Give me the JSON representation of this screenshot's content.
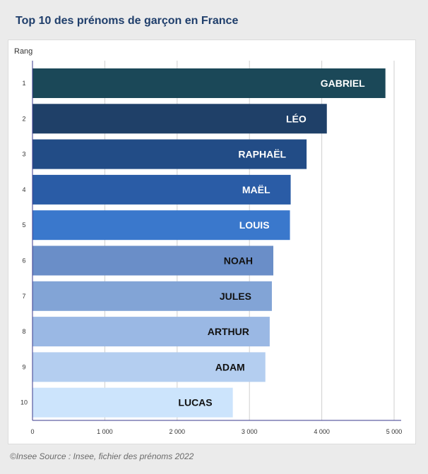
{
  "title": "Top 10 des prénoms de garçon en France",
  "caption": "©Insee Source : Insee, fichier des prénoms 2022",
  "chart_data": {
    "type": "bar",
    "orientation": "horizontal",
    "title": "Top 10 des prénoms de garçon en France",
    "ylabel": "Rang",
    "xlabel": "",
    "categories": [
      "1",
      "2",
      "3",
      "4",
      "5",
      "6",
      "7",
      "8",
      "9",
      "10"
    ],
    "names": [
      "GABRIEL",
      "LÉO",
      "RAPHAËL",
      "MAËL",
      "LOUIS",
      "NOAH",
      "JULES",
      "ARTHUR",
      "ADAM",
      "LUCAS"
    ],
    "values": [
      4880,
      4070,
      3790,
      3570,
      3560,
      3330,
      3310,
      3280,
      3220,
      2770
    ],
    "xlim": [
      0,
      5000
    ],
    "xticks": [
      0,
      1000,
      2000,
      3000,
      4000,
      5000
    ],
    "xtick_labels": [
      "0",
      "1 000",
      "2 000",
      "3 000",
      "4 000",
      "5 000"
    ],
    "grid": true,
    "legend": false,
    "colors": [
      "#1b4858",
      "#1f4068",
      "#224c86",
      "#2a5ca6",
      "#3a78cc",
      "#6a8ec8",
      "#82a4d6",
      "#9ab8e4",
      "#b4cef0",
      "#cce4fc"
    ],
    "label_colors": [
      "#ffffff",
      "#ffffff",
      "#ffffff",
      "#ffffff",
      "#ffffff",
      "#111111",
      "#111111",
      "#111111",
      "#111111",
      "#111111"
    ]
  }
}
